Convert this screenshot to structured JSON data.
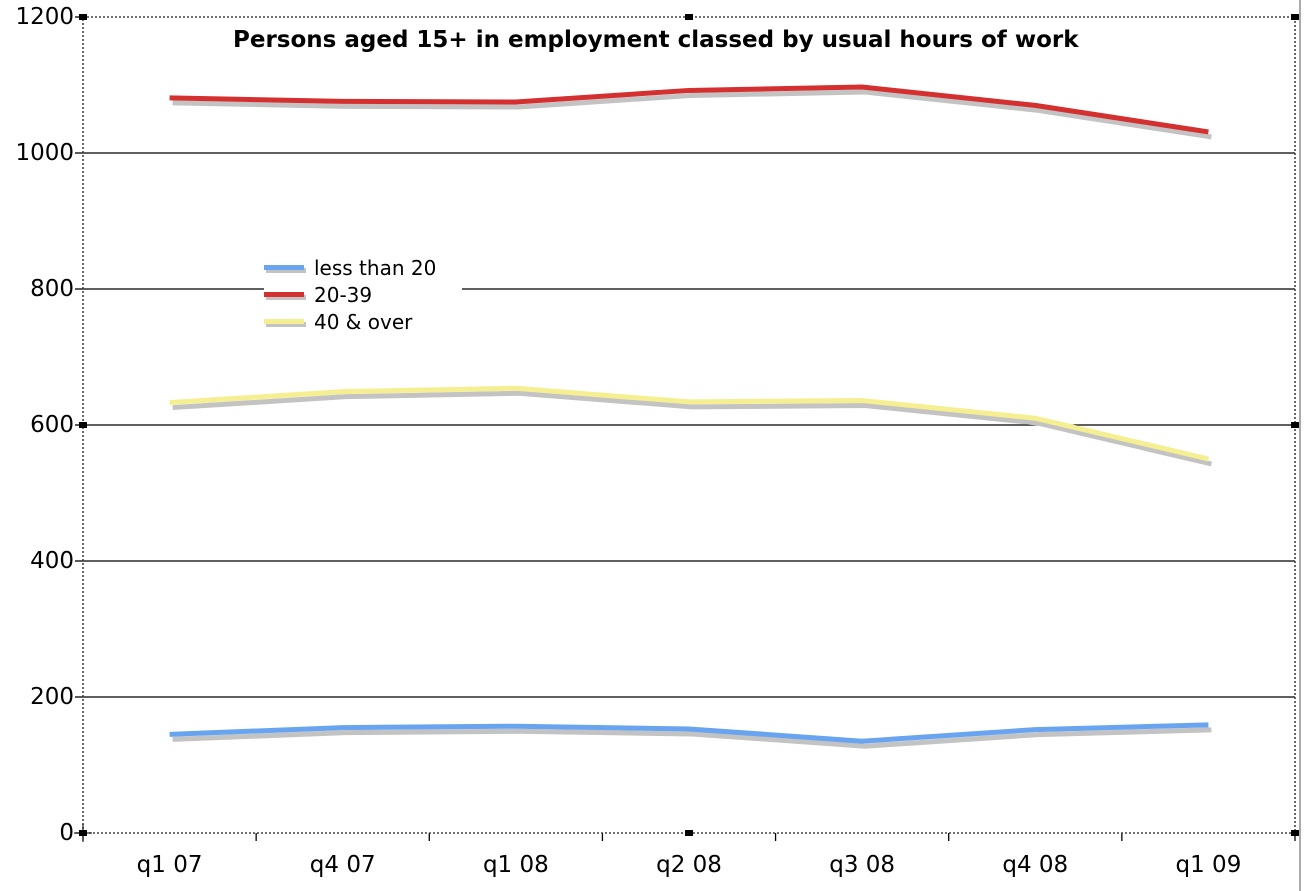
{
  "window": {
    "background": "#FFFFFF",
    "right_edge_color": "#AAAAAA"
  },
  "chart_data": {
    "type": "line",
    "title": "Persons aged 15+ in employment classed by usual hours of work",
    "categories": [
      "q1 07",
      "q4 07",
      "q1 08",
      "q2 08",
      "q3 08",
      "q4 08",
      "q1 09"
    ],
    "series": [
      {
        "name": "less than 20",
        "color": "#68A4EF",
        "values": [
          145,
          155,
          157,
          153,
          135,
          152,
          159
        ]
      },
      {
        "name": "20-39",
        "color": "#D3302F",
        "values": [
          1081,
          1076,
          1075,
          1092,
          1097,
          1070,
          1031
        ]
      },
      {
        "name": "40 & over",
        "color": "#F5EF92",
        "values": [
          633,
          649,
          654,
          634,
          636,
          610,
          550
        ]
      }
    ],
    "xlabel": "",
    "ylabel": "",
    "ylim": [
      0,
      1200
    ],
    "ytick_step": 200,
    "ytick_labels": [
      "0",
      "200",
      "400",
      "600",
      "800",
      "1000",
      "1200"
    ],
    "grid": "horizontal",
    "gridline_color": "#000000",
    "shadow_color": "#C3C3C3",
    "legend_position": "inside-left",
    "selection": {
      "marquee": true,
      "marquee_color": "#444444",
      "handle_color": "#000000"
    }
  }
}
